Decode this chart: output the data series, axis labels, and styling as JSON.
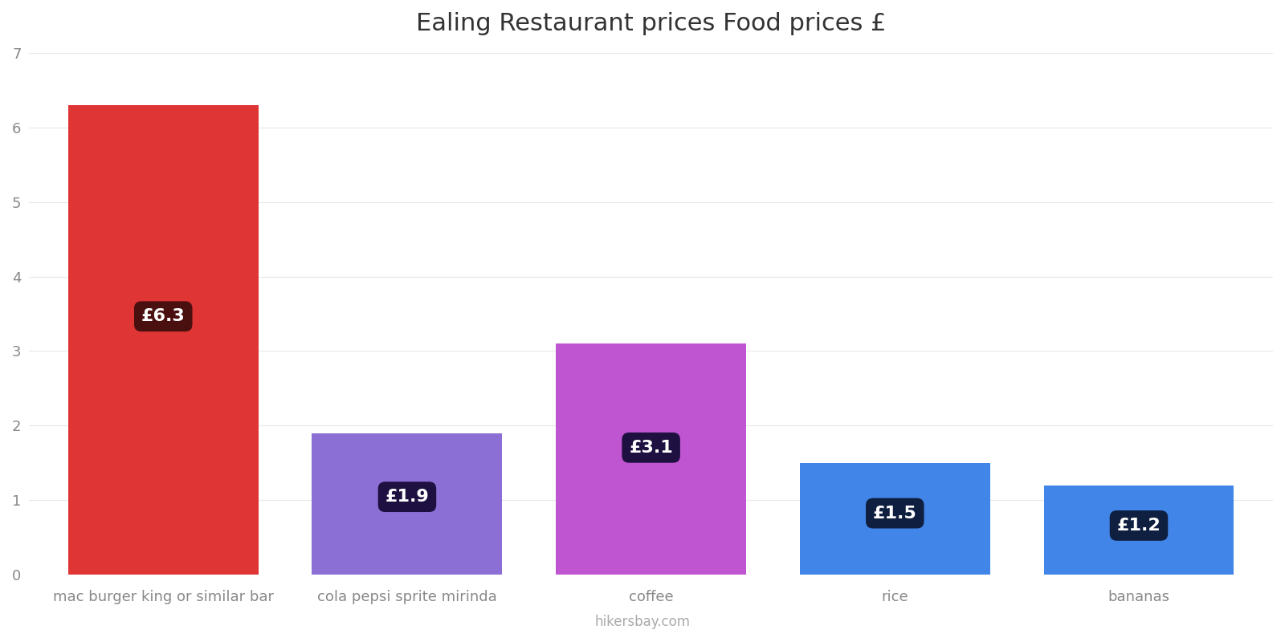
{
  "title": "Ealing Restaurant prices Food prices £",
  "categories": [
    "mac burger king or similar bar",
    "cola pepsi sprite mirinda",
    "coffee",
    "rice",
    "bananas"
  ],
  "values": [
    6.3,
    1.9,
    3.1,
    1.5,
    1.2
  ],
  "bar_colors": [
    "#e03535",
    "#8b6fd4",
    "#bf55d0",
    "#4285e8",
    "#4285e8"
  ],
  "label_bg_colors": [
    "#4a0f0f",
    "#1e1040",
    "#1e1040",
    "#0f1f40",
    "#0f1f40"
  ],
  "labels": [
    "£6.3",
    "£1.9",
    "£3.1",
    "£1.5",
    "£1.2"
  ],
  "ylim": [
    0,
    7
  ],
  "yticks": [
    0,
    1,
    2,
    3,
    4,
    5,
    6,
    7
  ],
  "background_color": "#ffffff",
  "title_fontsize": 22,
  "tick_fontsize": 13,
  "label_fontsize": 16,
  "footer_text": "hikersbay.com",
  "footer_color": "#aaaaaa",
  "bar_width": 0.78
}
